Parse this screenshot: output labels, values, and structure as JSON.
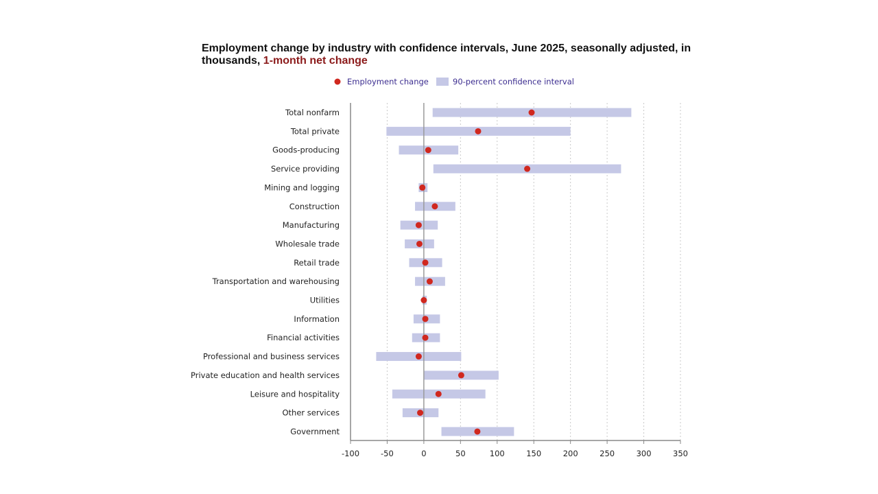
{
  "chart_data": {
    "type": "dot-interval",
    "title": "Employment change by industry with confidence intervals, June 2025, seasonally adjusted, in thousands,",
    "title_highlight": "1-month net change",
    "legend": {
      "point": "Employment change",
      "interval": "90-percent confidence interval",
      "placement": "top"
    },
    "xlim": [
      -100,
      350
    ],
    "xticks": [
      "-100",
      "-50",
      "0",
      "50",
      "100",
      "150",
      "200",
      "250",
      "300",
      "350"
    ],
    "xtick_values": [
      -100,
      -50,
      0,
      50,
      100,
      150,
      200,
      250,
      300,
      350
    ],
    "grid": true,
    "categories": [
      "Total nonfarm",
      "Total private",
      "Goods-producing",
      "Service providing",
      "Mining and logging",
      "Construction",
      "Manufacturing",
      "Wholesale trade",
      "Retail trade",
      "Transportation and warehousing",
      "Utilities",
      "Information",
      "Financial activities",
      "Professional and business services",
      "Private education and health services",
      "Leisure and hospitality",
      "Other services",
      "Government"
    ],
    "values": [
      147,
      74,
      6,
      141,
      -2,
      15,
      -7,
      -6,
      2,
      8,
      0,
      2,
      2,
      -7,
      51,
      20,
      -5,
      73
    ],
    "ci_low": [
      12,
      -51,
      -34,
      13,
      -7,
      -12,
      -32,
      -26,
      -20,
      -12,
      -2,
      -14,
      -16,
      -65,
      0,
      -43,
      -29,
      24
    ],
    "ci_high": [
      283,
      200,
      47,
      269,
      5,
      43,
      19,
      14,
      25,
      29,
      4,
      22,
      22,
      51,
      102,
      84,
      20,
      123
    ],
    "colors": {
      "point": "#d0281f",
      "interval": "#c5c8e6",
      "axis": "#888888",
      "grid": "#c8c8c8"
    }
  }
}
